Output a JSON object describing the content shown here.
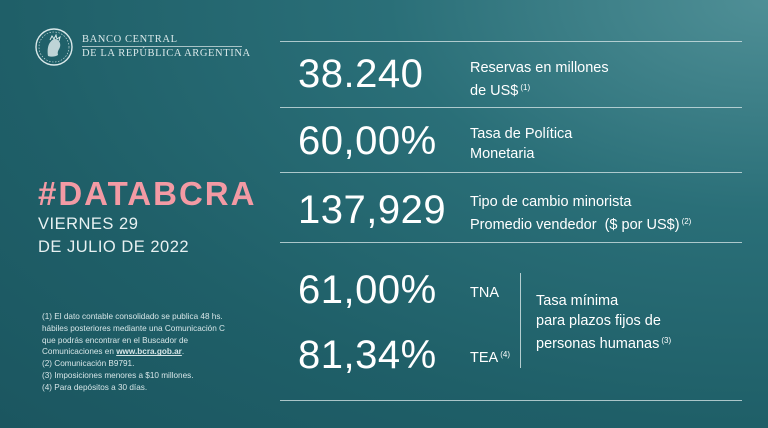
{
  "header": {
    "logo_line1": "BANCO CENTRAL",
    "logo_line2": "DE LA REPÚBLICA ARGENTINA",
    "logo_icon": "bcra-seal-icon"
  },
  "headline": {
    "hashtag": "#DATABCRA",
    "date_line1": "VIERNES 29",
    "date_line2": "DE JULIO DE 2022"
  },
  "footnotes": {
    "n1_a": "(1) El dato contable consolidado se publica 48 hs.",
    "n1_b": "hábiles posteriores mediante una Comunicación C",
    "n1_c": "que podrás encontrar en el Buscador de",
    "n1_d_prefix": "Comunicaciones en ",
    "n1_d_link": "www.bcra.gob.ar",
    "n1_d_suffix": ".",
    "n2": "(2) Comunicación B9791.",
    "n3": "(3) Imposiciones menores a $10 millones.",
    "n4": "(4) Para depósitos a 30 días."
  },
  "stats": {
    "reservas": {
      "value": "38.240",
      "label_line1": "Reservas en millones",
      "label_line2": "de US$",
      "note": "(1)"
    },
    "tasa_politica": {
      "value": "60,00%",
      "label_line1": "Tasa de Política",
      "label_line2": "Monetaria"
    },
    "tipo_cambio": {
      "value": "137,929",
      "label_line1": "Tipo de cambio minorista",
      "label_line2": "Promedio vendedor  ($ por US$)",
      "note": "(2)"
    },
    "tna": {
      "value": "61,00%",
      "label": "TNA"
    },
    "tea": {
      "value": "81,34%",
      "label": "TEA",
      "note": "(4)"
    },
    "plazos_fijos": {
      "line1": "Tasa mínima",
      "line2": "para plazos fijos de",
      "line3": "personas humanas",
      "note": "(3)"
    }
  },
  "colors": {
    "accent_pink": "#f39aa4",
    "background": "#1f5f68"
  }
}
